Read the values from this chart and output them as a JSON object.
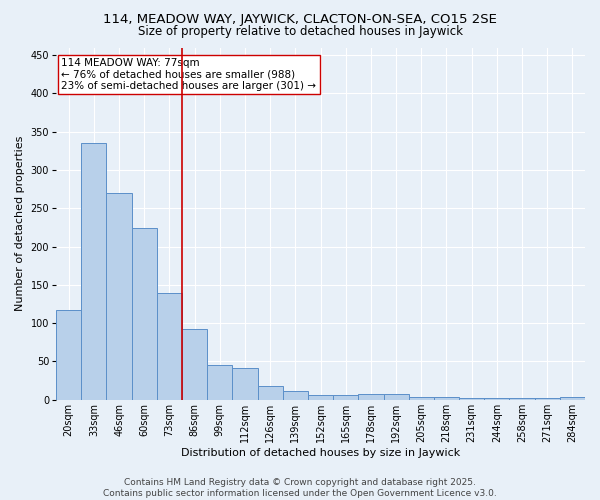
{
  "title": "114, MEADOW WAY, JAYWICK, CLACTON-ON-SEA, CO15 2SE",
  "subtitle": "Size of property relative to detached houses in Jaywick",
  "xlabel": "Distribution of detached houses by size in Jaywick",
  "ylabel": "Number of detached properties",
  "categories": [
    "20sqm",
    "33sqm",
    "46sqm",
    "60sqm",
    "73sqm",
    "86sqm",
    "99sqm",
    "112sqm",
    "126sqm",
    "139sqm",
    "152sqm",
    "165sqm",
    "178sqm",
    "192sqm",
    "205sqm",
    "218sqm",
    "231sqm",
    "244sqm",
    "258sqm",
    "271sqm",
    "284sqm"
  ],
  "values": [
    117,
    335,
    270,
    224,
    140,
    93,
    45,
    41,
    18,
    11,
    6,
    6,
    7,
    7,
    3,
    3,
    2,
    2,
    2,
    2,
    3
  ],
  "bar_color": "#b8d0ea",
  "bar_edge_color": "#5b8fc9",
  "background_color": "#e8f0f8",
  "grid_color": "#ffffff",
  "vline_x": 4.5,
  "vline_color": "#cc0000",
  "annotation_text": "114 MEADOW WAY: 77sqm\n← 76% of detached houses are smaller (988)\n23% of semi-detached houses are larger (301) →",
  "annotation_box_color": "#ffffff",
  "annotation_box_edge": "#cc0000",
  "ylim": [
    0,
    460
  ],
  "yticks": [
    0,
    50,
    100,
    150,
    200,
    250,
    300,
    350,
    400,
    450
  ],
  "footer_text": "Contains HM Land Registry data © Crown copyright and database right 2025.\nContains public sector information licensed under the Open Government Licence v3.0.",
  "title_fontsize": 9.5,
  "subtitle_fontsize": 8.5,
  "axis_label_fontsize": 8,
  "tick_fontsize": 7,
  "annotation_fontsize": 7.5,
  "footer_fontsize": 6.5
}
